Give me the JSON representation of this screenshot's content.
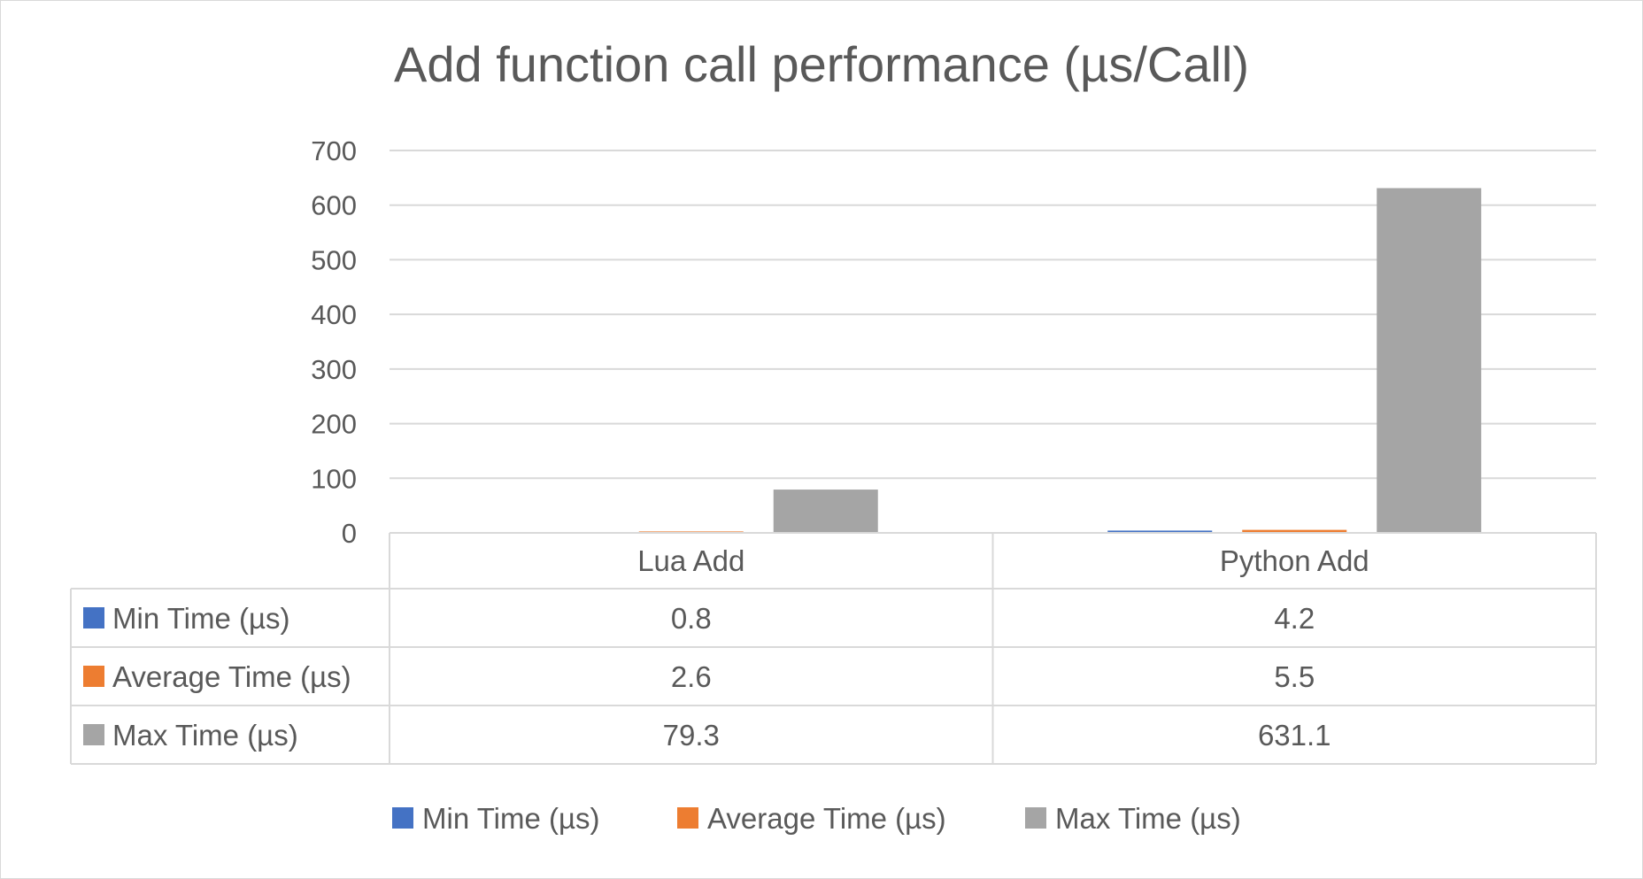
{
  "chart_data": {
    "type": "bar",
    "title": "Add function call performance (µs/Call)",
    "categories": [
      "Lua Add",
      "Python Add"
    ],
    "series": [
      {
        "name": "Min Time (µs)",
        "values": [
          0.8,
          4.2
        ],
        "color": "#4472C4"
      },
      {
        "name": "Average Time (µs)",
        "values": [
          2.6,
          5.5
        ],
        "color": "#ED7D31"
      },
      {
        "name": "Max Time (µs)",
        "values": [
          79.3,
          631.1
        ],
        "color": "#A5A5A5"
      }
    ],
    "y_ticks": [
      "0",
      "100",
      "200",
      "300",
      "400",
      "500",
      "600",
      "700"
    ],
    "ylim": [
      0,
      700
    ],
    "grid": true,
    "data_table": [
      {
        "series": "Min Time (µs)",
        "cells": [
          "0.8",
          "4.2"
        ]
      },
      {
        "series": "Average Time (µs)",
        "cells": [
          "2.6",
          "5.5"
        ]
      },
      {
        "series": "Max Time (µs)",
        "cells": [
          "79.3",
          "631.1"
        ]
      }
    ],
    "legend_position": "bottom"
  }
}
